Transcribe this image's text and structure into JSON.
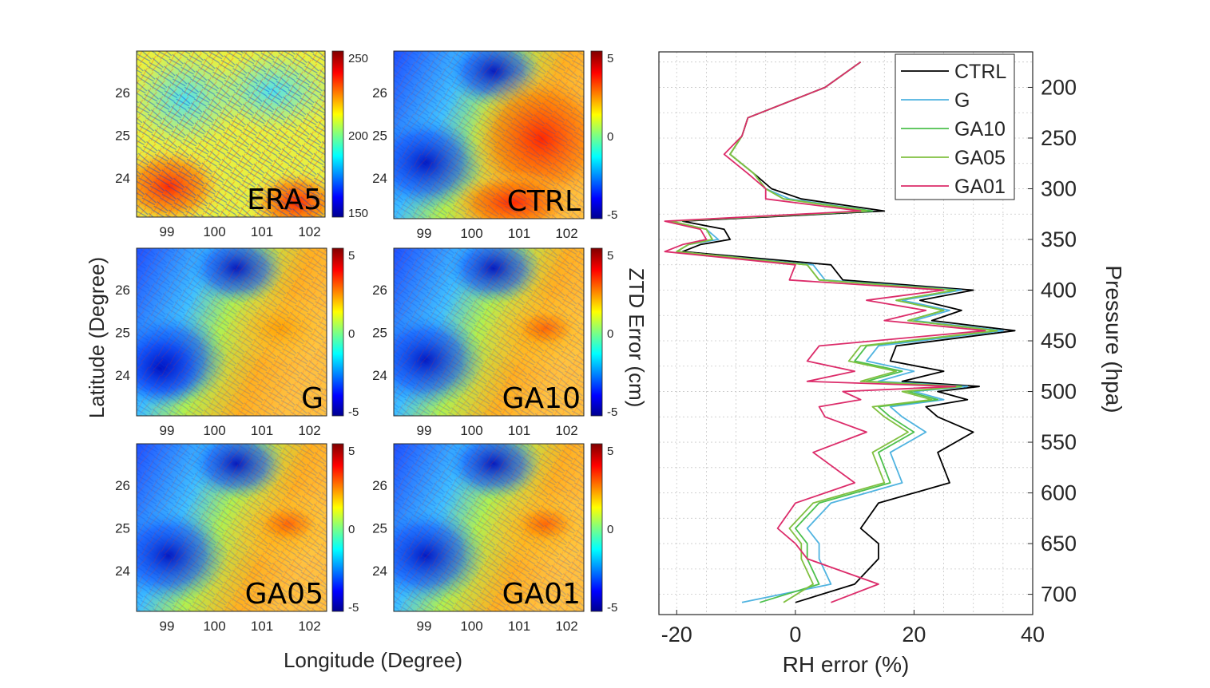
{
  "figure": {
    "left_xlabel": "Longitude (Degree)",
    "left_ylabel": "Latitude (Degree)",
    "colorbar_label": "ZTD Error (cm)"
  },
  "maps": [
    {
      "label": "ERA5",
      "lon_ticks": [
        "99",
        "100",
        "101",
        "102"
      ],
      "lat_ticks": [
        "26",
        "25",
        "24"
      ],
      "cbar_ticks": [
        "250",
        "200",
        "150"
      ],
      "cbar_range": [
        150,
        250
      ]
    },
    {
      "label": "CTRL",
      "lon_ticks": [
        "99",
        "100",
        "101",
        "102"
      ],
      "lat_ticks": [
        "26",
        "25",
        "24"
      ],
      "cbar_ticks": [
        "5",
        "0",
        "-5"
      ],
      "cbar_range": [
        -5,
        5
      ]
    },
    {
      "label": "G",
      "lon_ticks": [
        "99",
        "100",
        "101",
        "102"
      ],
      "lat_ticks": [
        "26",
        "25",
        "24"
      ],
      "cbar_ticks": [
        "5",
        "0",
        "-5"
      ],
      "cbar_range": [
        -5,
        5
      ]
    },
    {
      "label": "GA10",
      "lon_ticks": [
        "99",
        "100",
        "101",
        "102"
      ],
      "lat_ticks": [
        "26",
        "25",
        "24"
      ],
      "cbar_ticks": [
        "5",
        "0",
        "-5"
      ],
      "cbar_range": [
        -5,
        5
      ]
    },
    {
      "label": "GA05",
      "lon_ticks": [
        "99",
        "100",
        "101",
        "102"
      ],
      "lat_ticks": [
        "26",
        "25",
        "24"
      ],
      "cbar_ticks": [
        "5",
        "0",
        "-5"
      ],
      "cbar_range": [
        -5,
        5
      ]
    },
    {
      "label": "GA01",
      "lon_ticks": [
        "99",
        "100",
        "101",
        "102"
      ],
      "lat_ticks": [
        "26",
        "25",
        "24"
      ],
      "cbar_ticks": [
        "5",
        "0",
        "-5"
      ],
      "cbar_range": [
        -5,
        5
      ]
    }
  ],
  "chart_data": {
    "type": "line",
    "xlabel": "RH error (%)",
    "ylabel": "Pressure (hpa)",
    "xlim": [
      -23,
      40
    ],
    "ylim": [
      165,
      720
    ],
    "y_reversed": true,
    "x_ticks": [
      -20,
      0,
      20,
      40
    ],
    "y_ticks": [
      200,
      250,
      300,
      350,
      400,
      450,
      500,
      550,
      600,
      650,
      700
    ],
    "grid": true,
    "legend_position": "top-right",
    "pressure": [
      175,
      200,
      230,
      248,
      266,
      285,
      300,
      310,
      322,
      332,
      340,
      350,
      355,
      362,
      375,
      390,
      400,
      410,
      420,
      430,
      440,
      455,
      470,
      480,
      490,
      495,
      500,
      508,
      515,
      525,
      540,
      560,
      590,
      610,
      635,
      650,
      665,
      690,
      708
    ],
    "series": [
      {
        "name": "CTRL",
        "color": "#000000",
        "values": [
          11,
          5,
          -8,
          -9,
          -11,
          -7,
          -4,
          1,
          15,
          -19,
          -12,
          -11,
          -16,
          -19,
          6,
          8,
          30,
          21,
          28,
          23,
          37,
          17,
          16,
          25,
          18,
          31,
          24,
          29,
          22,
          24,
          30,
          24,
          26,
          14,
          11,
          14,
          14,
          10,
          0
        ]
      },
      {
        "name": "G",
        "color": "#4fb3e0",
        "values": [
          11,
          5,
          -8,
          -9,
          -11,
          -7,
          -5,
          -1,
          13,
          -21,
          -15,
          -13,
          -18,
          -20,
          3,
          5,
          28,
          18,
          26,
          20,
          35,
          14,
          12,
          20,
          14,
          29,
          20,
          25,
          16,
          18,
          22,
          16,
          18,
          6,
          2,
          4,
          4,
          6,
          -9
        ]
      },
      {
        "name": "GA10",
        "color": "#4dc04d",
        "values": [
          11,
          5,
          -8,
          -9,
          -11,
          -7,
          -5,
          -2,
          13,
          -21,
          -15,
          -14,
          -18,
          -20,
          2,
          4,
          27,
          17,
          25,
          19,
          34,
          12,
          10,
          18,
          12,
          28,
          19,
          24,
          14,
          16,
          20,
          14,
          16,
          4,
          0,
          2,
          2,
          4,
          -6
        ]
      },
      {
        "name": "GA05",
        "color": "#80c040",
        "values": [
          11,
          5,
          -8,
          -9,
          -11,
          -7,
          -5,
          -2,
          12,
          -21,
          -15,
          -14,
          -18,
          -20,
          2,
          4,
          27,
          17,
          25,
          19,
          34,
          11,
          9,
          17,
          11,
          28,
          18,
          23,
          13,
          15,
          19,
          13,
          15,
          3,
          -1,
          1,
          1,
          3,
          -2
        ]
      },
      {
        "name": "GA01",
        "color": "#dc2c6a",
        "values": [
          11,
          5,
          -8,
          -9,
          -12,
          -8,
          -5,
          -5,
          11,
          -22,
          -16,
          -15,
          -19,
          -22,
          0,
          -1,
          25,
          12,
          22,
          15,
          32,
          4,
          2,
          10,
          2,
          27,
          8,
          11,
          4,
          5,
          12,
          3,
          10,
          0,
          -3,
          0,
          2,
          14,
          6
        ]
      }
    ]
  }
}
